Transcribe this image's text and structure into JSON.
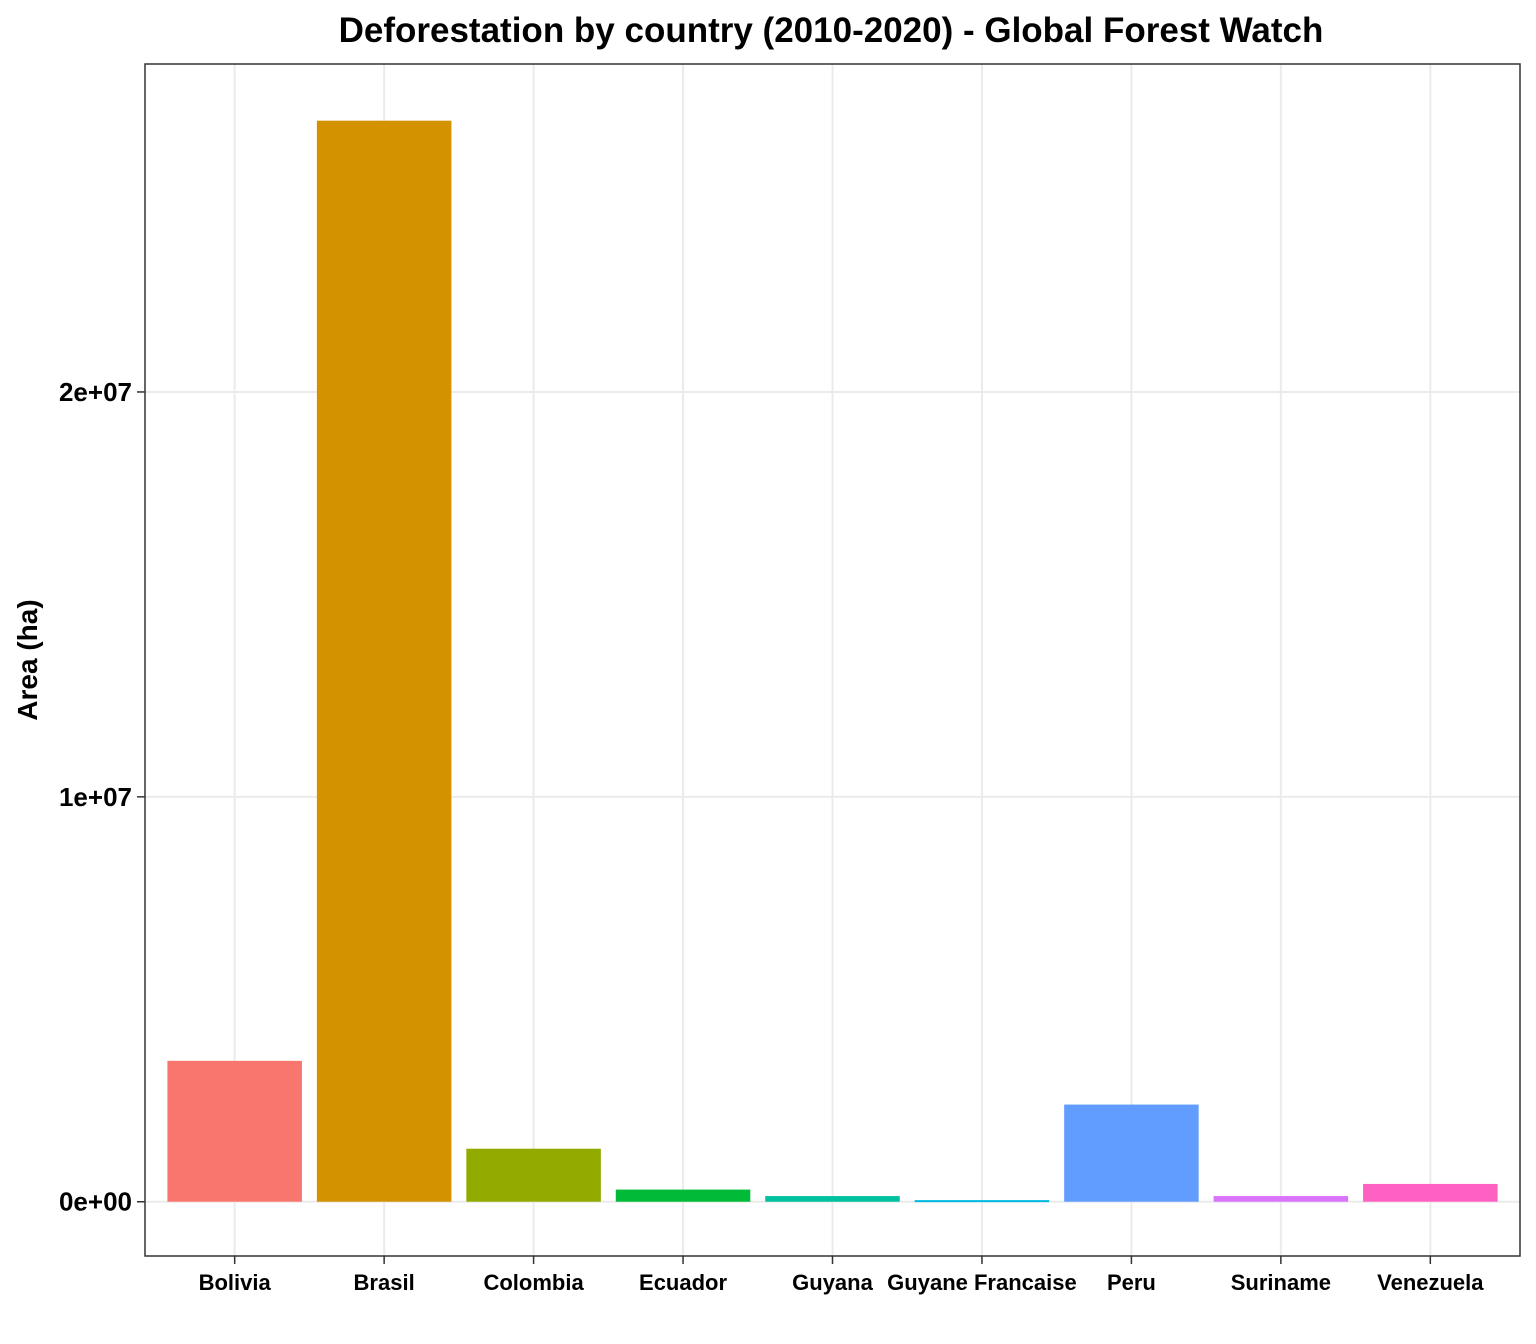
{
  "chart_data": {
    "type": "bar",
    "title": "Deforestation by country (2010-2020) - Global Forest Watch",
    "xlabel": "",
    "ylabel": "Area (ha)",
    "categories": [
      "Bolivia",
      "Brasil",
      "Colombia",
      "Ecuador",
      "Guyana",
      "Guyane Francaise",
      "Peru",
      "Suriname",
      "Venezuela"
    ],
    "values": [
      3480000,
      26700000,
      1310000,
      300000,
      140000,
      40000,
      2400000,
      140000,
      440000
    ],
    "colors": [
      "#F8766D",
      "#D39200",
      "#93AA00",
      "#00BA38",
      "#00C19F",
      "#00B9E3",
      "#619CFF",
      "#DB72FB",
      "#FF61C3"
    ],
    "ylim": [
      -1340000,
      28100000
    ],
    "y_ticks": [
      0,
      10000000,
      20000000
    ],
    "y_tick_labels": [
      "0e+00",
      "1e+07",
      "2e+07"
    ],
    "grid": true,
    "legend": "none"
  }
}
